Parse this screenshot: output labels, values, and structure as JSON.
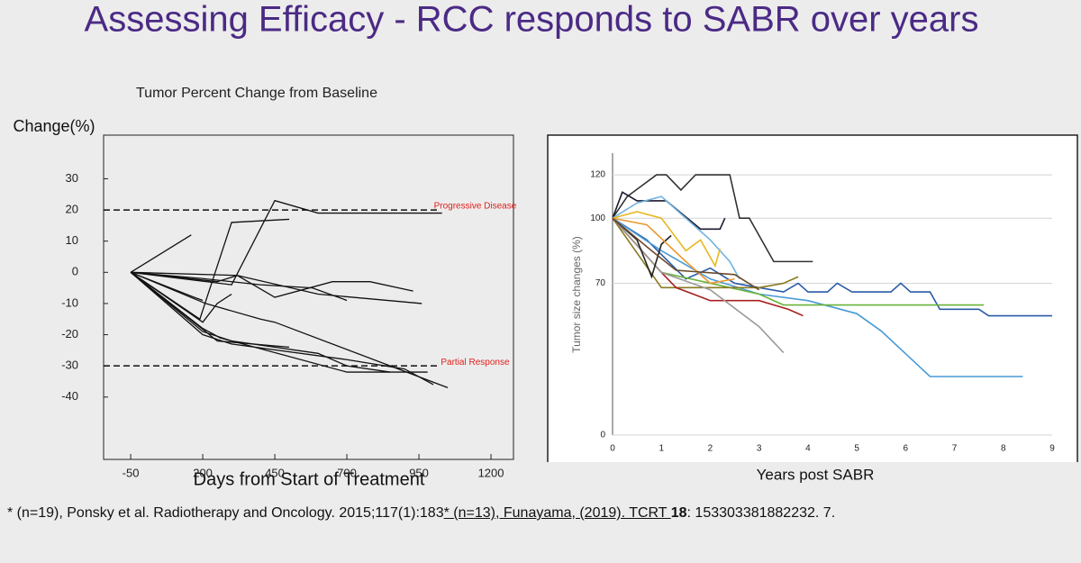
{
  "title": "Assessing Efficacy - RCC responds to SABR over years",
  "footnote": [
    "* (n=19), Ponsky et al.  Radiotherapy and Oncology. 2015;117(1):183",
    "* (n=13), Funayama, (2019). TCRT ",
    "18",
    ": 153303381882232. 7."
  ],
  "chart_data": [
    {
      "type": "line",
      "title": "Tumor Percent Change from Baseline",
      "y_label": "Change(%)",
      "x_label": "Days from Start of Treatment",
      "xlim": [
        -144,
        1278
      ],
      "ylim": [
        -60,
        44
      ],
      "xticks": [
        -50,
        200,
        450,
        700,
        950,
        1200
      ],
      "yticks": [
        30,
        20,
        10,
        0,
        -10,
        -20,
        -30,
        -40
      ],
      "grid": false,
      "reference_lines": [
        {
          "value": 20,
          "label": "Progressive Disease",
          "color": "#e0201b"
        },
        {
          "value": -30,
          "label": "Partial Response",
          "color": "#e0201b"
        }
      ],
      "series": [
        {
          "color": "#111111",
          "x": [
            -50,
            160
          ],
          "values": [
            0,
            12
          ]
        },
        {
          "color": "#111111",
          "x": [
            -50,
            190,
            300,
            500
          ],
          "values": [
            0,
            -15,
            16,
            17
          ]
        },
        {
          "color": "#111111",
          "x": [
            -50,
            300,
            450,
            600,
            1030
          ],
          "values": [
            0,
            -4,
            23,
            19,
            19
          ]
        },
        {
          "color": "#111111",
          "x": [
            -50,
            320,
            450,
            650,
            780,
            930
          ],
          "values": [
            0,
            -1,
            -8,
            -3,
            -3,
            -6
          ]
        },
        {
          "color": "#111111",
          "x": [
            -50,
            250,
            320,
            600,
            960
          ],
          "values": [
            0,
            -3,
            -1,
            -7,
            -10
          ]
        },
        {
          "color": "#111111",
          "x": [
            -50,
            200,
            400,
            580,
            700
          ],
          "values": [
            0,
            -2,
            -4,
            -5,
            -9
          ]
        },
        {
          "color": "#111111",
          "x": [
            -50,
            170,
            200
          ],
          "values": [
            0,
            -8,
            -9
          ]
        },
        {
          "color": "#111111",
          "x": [
            -50,
            200,
            250,
            300
          ],
          "values": [
            0,
            -16,
            -10,
            -7
          ]
        },
        {
          "color": "#111111",
          "x": [
            -50,
            210,
            400,
            450,
            1050
          ],
          "values": [
            0,
            -10,
            -15,
            -16,
            -37
          ]
        },
        {
          "color": "#111111",
          "x": [
            -50,
            210,
            250,
            500
          ],
          "values": [
            0,
            -19,
            -22,
            -24
          ]
        },
        {
          "color": "#111111",
          "x": [
            -50,
            200,
            300,
            600,
            700,
            850
          ],
          "values": [
            0,
            -19,
            -22,
            -26,
            -30,
            -32
          ]
        },
        {
          "color": "#111111",
          "x": [
            -50,
            200,
            260,
            700,
            980
          ],
          "values": [
            0,
            -18,
            -21,
            -32,
            -32
          ]
        },
        {
          "color": "#111111",
          "x": [
            -50,
            200,
            300,
            700,
            900,
            1000
          ],
          "values": [
            0,
            -20,
            -23,
            -28,
            -31,
            -36
          ]
        }
      ]
    },
    {
      "type": "line",
      "y_label": "Tumor size changes (%)",
      "x_label": "Years post SABR",
      "xlim": [
        0,
        9
      ],
      "ylim": [
        0,
        130
      ],
      "xticks": [
        0,
        1,
        2,
        3,
        4,
        5,
        6,
        7,
        8,
        9
      ],
      "yticks": [
        0,
        70,
        100,
        120
      ],
      "grid": true,
      "series": [
        {
          "color": "#333333",
          "x": [
            0,
            0.3,
            0.6,
            0.9,
            1.1,
            1.4,
            1.7,
            2.4,
            2.6,
            2.8,
            3.3,
            4.1
          ],
          "values": [
            100,
            110,
            115,
            120,
            120,
            113,
            120,
            120,
            100,
            100,
            80,
            80
          ]
        },
        {
          "color": "#1a1a2e",
          "x": [
            0,
            0.2,
            0.5,
            1.1,
            1.8,
            2.2,
            2.3
          ],
          "values": [
            100,
            112,
            108,
            108,
            95,
            95,
            100
          ]
        },
        {
          "color": "#6fb3e0",
          "x": [
            0,
            0.5,
            1,
            1.5,
            2,
            2.4,
            2.6
          ],
          "values": [
            100,
            107,
            110,
            100,
            90,
            80,
            72
          ]
        },
        {
          "color": "#2a5ba8",
          "x": [
            0,
            0.7,
            1.5,
            2,
            2.5,
            3,
            3.5,
            3.8,
            4,
            4.4,
            4.6,
            4.9,
            5.7,
            5.9,
            6.1,
            6.5,
            6.7,
            7.5,
            7.7,
            9
          ],
          "values": [
            100,
            90,
            72,
            77,
            70,
            68,
            66,
            70,
            66,
            66,
            70,
            66,
            66,
            70,
            66,
            66,
            58,
            58,
            55,
            55
          ]
        },
        {
          "color": "#4a9ad6",
          "x": [
            0,
            1,
            2,
            3,
            4,
            5,
            5.5,
            6.5,
            8.4
          ],
          "values": [
            100,
            85,
            72,
            65,
            62,
            56,
            48,
            27,
            27
          ]
        },
        {
          "color": "#6ab33a",
          "x": [
            0,
            1,
            2,
            3,
            3.5,
            7.6
          ],
          "values": [
            100,
            75,
            70,
            65,
            60,
            60
          ]
        },
        {
          "color": "#8a7a20",
          "x": [
            0,
            1,
            2,
            2.5,
            3,
            3.5,
            3.8
          ],
          "values": [
            100,
            68,
            68,
            68,
            68,
            70,
            73
          ]
        },
        {
          "color": "#e8b820",
          "x": [
            0,
            0.5,
            1,
            1.5,
            1.8,
            2.1,
            2.2
          ],
          "values": [
            100,
            103,
            100,
            85,
            90,
            78,
            86
          ]
        },
        {
          "color": "#a82020",
          "x": [
            0,
            1,
            1.3,
            2,
            3,
            3.6,
            3.9
          ],
          "values": [
            100,
            75,
            68,
            62,
            62,
            58,
            55
          ]
        },
        {
          "color": "#9a9a9a",
          "x": [
            0,
            1,
            2,
            3,
            3.5
          ],
          "values": [
            100,
            75,
            67,
            50,
            38
          ]
        },
        {
          "color": "#222222",
          "x": [
            0,
            0.5,
            0.8,
            1,
            1.2
          ],
          "values": [
            100,
            90,
            73,
            88,
            92
          ]
        },
        {
          "color": "#e89a30",
          "x": [
            0,
            0.7,
            1.5,
            2,
            2.5
          ],
          "values": [
            100,
            97,
            80,
            70,
            72
          ]
        },
        {
          "color": "#6b4a2a",
          "x": [
            0,
            0.8,
            1.3,
            2.5,
            3
          ],
          "values": [
            100,
            85,
            76,
            74,
            67
          ]
        }
      ]
    }
  ]
}
